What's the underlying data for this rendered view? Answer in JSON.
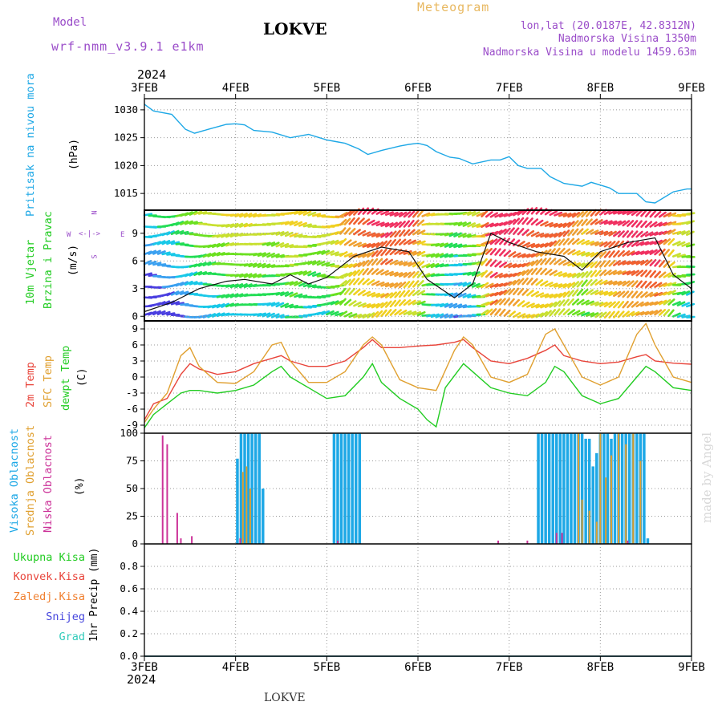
{
  "header": {
    "model_label": "Model",
    "model_name": "wrf-nmm_v3.9.1 e1km",
    "station": "LOKVE",
    "meteogram_label": "Meteogram",
    "lonlat": "lon,lat (20.0187E, 42.8312N)",
    "elevation": "Nadmorska Visina 1350m",
    "model_elevation": "Nadmorska Visina u modelu 1459.63m",
    "year_top": "2024",
    "year_bottom": "2024",
    "footer_station": "LOKVE",
    "watermark": "made by Angel"
  },
  "x_axis": {
    "dates": [
      "3FEB",
      "4FEB",
      "5FEB",
      "6FEB",
      "7FEB",
      "8FEB",
      "9FEB"
    ]
  },
  "colors": {
    "pressure": "#1ea8e6",
    "temp2m": "#e8443a",
    "sfc_temp": "#e0a030",
    "dewpt": "#22cc22",
    "cloud_high": "#1ea8e6",
    "cloud_mid": "#e0a030",
    "cloud_low": "#cc3399"
  },
  "panels": {
    "pressure": {
      "title": "Pritisak na nivou mora",
      "unit": "(hPa)"
    },
    "wind": {
      "title1": "10m Vjetar",
      "title2": "Brzina i Pravac",
      "unit": "(m/s)",
      "compass_n": "N",
      "compass_s": "S",
      "compass_w": "W",
      "compass_e": "E"
    },
    "temp": {
      "title1": "2m Temp",
      "title2": "SFC Temp",
      "title3": "dewpt Temp",
      "unit": "(C)"
    },
    "cloud": {
      "title1": "Visoka Oblacnost",
      "title2": "Srednja Oblacnost",
      "title3": "Niska Oblacnost",
      "unit": "(%)"
    },
    "precip": {
      "l1": "Ukupna Kisa",
      "l2": "Konvek.Kisa",
      "l3": "Zaledj.Kisa",
      "l4": "Snijeg",
      "l5": "Grad",
      "unit": "1hr Precip (mm)"
    }
  },
  "chart_data": [
    {
      "type": "line",
      "title": "Pritisak na nivou mora",
      "ylabel": "(hPa)",
      "ylim": [
        1012,
        1032
      ],
      "yticks": [
        1015,
        1020,
        1025,
        1030
      ],
      "x_unit": "days since 3FEB 00 UTC",
      "series": [
        {
          "name": "Pritisak na nivou mora",
          "x": [
            0,
            0.1,
            0.3,
            0.45,
            0.55,
            0.7,
            0.9,
            1.0,
            1.1,
            1.2,
            1.4,
            1.6,
            1.8,
            2.0,
            2.1,
            2.2,
            2.35,
            2.45,
            2.6,
            2.8,
            2.9,
            3.0,
            3.1,
            3.2,
            3.35,
            3.45,
            3.6,
            3.8,
            3.9,
            4.0,
            4.1,
            4.2,
            4.35,
            4.45,
            4.6,
            4.8,
            4.9,
            5.0,
            5.1,
            5.2,
            5.4,
            5.5,
            5.6,
            5.8,
            5.95,
            6.0
          ],
          "values": [
            1031,
            1029.8,
            1029.2,
            1026.5,
            1025.8,
            1026.5,
            1027.4,
            1027.5,
            1027.3,
            1026.3,
            1026.0,
            1025.0,
            1025.6,
            1024.6,
            1024.3,
            1024.0,
            1023.0,
            1022.0,
            1022.7,
            1023.5,
            1023.8,
            1024.0,
            1023.6,
            1022.5,
            1021.5,
            1021.3,
            1020.3,
            1021.0,
            1021.0,
            1021.6,
            1020.0,
            1019.5,
            1019.5,
            1018.0,
            1016.8,
            1016.3,
            1017.0,
            1016.5,
            1016.0,
            1015.0,
            1015.0,
            1013.5,
            1013.3,
            1015.3,
            1015.8,
            1015.8
          ]
        }
      ]
    },
    {
      "type": "line",
      "title": "10m Vjetar Brzina i Pravac",
      "ylabel": "(m/s)",
      "ylim": [
        -0.5,
        11.5
      ],
      "yticks": [
        0,
        3,
        6,
        9
      ],
      "series": [
        {
          "name": "10m Vjetar Brzina i Pravac",
          "x": [
            0,
            0.3,
            0.6,
            0.9,
            1.1,
            1.4,
            1.6,
            1.8,
            2.0,
            2.3,
            2.6,
            2.9,
            3.1,
            3.4,
            3.6,
            3.8,
            4.0,
            4.3,
            4.6,
            4.8,
            5.0,
            5.3,
            5.6,
            5.8,
            6.0
          ],
          "values": [
            0.5,
            1.5,
            3.0,
            3.8,
            4.0,
            3.5,
            4.5,
            3.5,
            4.2,
            6.5,
            7.5,
            7.0,
            4.0,
            2.0,
            3.5,
            9.0,
            8.0,
            7.0,
            6.5,
            5.0,
            7.0,
            8.0,
            8.5,
            4.5,
            3.0
          ]
        }
      ]
    },
    {
      "type": "line",
      "title": "2m Temp / SFC Temp / dewpt Temp",
      "ylabel": "(C)",
      "ylim": [
        -10.5,
        10.5
      ],
      "yticks": [
        -9,
        -6,
        -3,
        0,
        3,
        6,
        9
      ],
      "series": [
        {
          "name": "2m Temp",
          "x": [
            0,
            0.1,
            0.25,
            0.4,
            0.5,
            0.6,
            0.8,
            1.0,
            1.2,
            1.4,
            1.5,
            1.6,
            1.8,
            2.0,
            2.2,
            2.4,
            2.5,
            2.6,
            2.8,
            3.0,
            3.2,
            3.4,
            3.5,
            3.6,
            3.8,
            4.0,
            4.2,
            4.4,
            4.5,
            4.6,
            4.8,
            5.0,
            5.2,
            5.4,
            5.5,
            5.6,
            5.8,
            6.0
          ],
          "values": [
            -8,
            -5,
            -4,
            0.5,
            2.5,
            1.5,
            0.5,
            1,
            2.5,
            3.5,
            4,
            3,
            2,
            2,
            3,
            5.5,
            7,
            5.5,
            5.5,
            5.8,
            6,
            6.5,
            7,
            5.5,
            3,
            2.5,
            3.5,
            5,
            6,
            4,
            3,
            2.5,
            2.8,
            3.8,
            4.2,
            3,
            2.6,
            2.4
          ]
        },
        {
          "name": "SFC Temp",
          "x": [
            0,
            0.1,
            0.25,
            0.4,
            0.5,
            0.6,
            0.8,
            1.0,
            1.2,
            1.4,
            1.5,
            1.6,
            1.8,
            2.0,
            2.2,
            2.4,
            2.5,
            2.6,
            2.8,
            3.0,
            3.2,
            3.4,
            3.5,
            3.6,
            3.8,
            4.0,
            4.2,
            4.4,
            4.5,
            4.6,
            4.8,
            5.0,
            5.2,
            5.4,
            5.5,
            5.6,
            5.8,
            6.0
          ],
          "values": [
            -8.5,
            -6,
            -3,
            4,
            5.5,
            2,
            -1,
            -1.2,
            1,
            6,
            6.5,
            3,
            -1,
            -1,
            1,
            6,
            7.5,
            6,
            -0.5,
            -2,
            -2.5,
            5,
            7.5,
            6,
            0,
            -1,
            0.5,
            8,
            9,
            6,
            0,
            -1.5,
            0,
            8,
            10,
            6,
            0,
            -1
          ]
        },
        {
          "name": "dewpt Temp",
          "x": [
            0,
            0.1,
            0.25,
            0.4,
            0.5,
            0.6,
            0.8,
            1.0,
            1.2,
            1.4,
            1.5,
            1.6,
            1.8,
            2.0,
            2.2,
            2.4,
            2.5,
            2.6,
            2.8,
            3.0,
            3.1,
            3.2,
            3.3,
            3.5,
            3.6,
            3.8,
            4.0,
            4.2,
            4.4,
            4.5,
            4.6,
            4.8,
            5.0,
            5.2,
            5.4,
            5.5,
            5.6,
            5.8,
            6.0
          ],
          "values": [
            -9.5,
            -7,
            -5,
            -3,
            -2.5,
            -2.5,
            -3,
            -2.5,
            -1.5,
            1,
            2,
            0,
            -2,
            -4,
            -3.5,
            0,
            2.5,
            -1,
            -4,
            -6,
            -8,
            -9.3,
            -2,
            2.5,
            1,
            -2,
            -3,
            -3.5,
            -1,
            2,
            1,
            -3.5,
            -5,
            -4,
            0,
            2,
            1,
            -2,
            -2.5
          ]
        }
      ]
    },
    {
      "type": "bar",
      "title": "Visoka / Srednja / Niska Oblacnost",
      "ylabel": "(%)",
      "ylim": [
        0,
        100
      ],
      "yticks": [
        0,
        25,
        50,
        75,
        100
      ],
      "series": [
        {
          "name": "Visoka Oblacnost",
          "x": [
            1.02,
            1.06,
            1.1,
            1.14,
            1.18,
            1.22,
            1.26,
            1.3,
            2.08,
            2.12,
            2.16,
            2.2,
            2.24,
            2.28,
            2.32,
            2.36,
            4.32,
            4.36,
            4.4,
            4.44,
            4.48,
            4.52,
            4.56,
            4.6,
            4.64,
            4.68,
            4.72,
            4.76,
            4.8,
            4.84,
            4.88,
            4.92,
            4.96,
            5.0,
            5.04,
            5.08,
            5.12,
            5.16,
            5.2,
            5.24,
            5.28,
            5.32,
            5.36,
            5.4,
            5.44,
            5.48,
            5.52
          ],
          "values": [
            77,
            100,
            100,
            100,
            100,
            100,
            100,
            50,
            100,
            100,
            100,
            100,
            100,
            100,
            100,
            100,
            100,
            100,
            100,
            100,
            100,
            100,
            100,
            100,
            100,
            100,
            100,
            100,
            100,
            95,
            95,
            70,
            82,
            100,
            100,
            100,
            95,
            100,
            100,
            100,
            100,
            100,
            100,
            100,
            100,
            100,
            5
          ]
        },
        {
          "name": "Srednja Oblacnost",
          "x": [
            1.08,
            1.12,
            1.16,
            4.76,
            4.8,
            4.88,
            4.96,
            5.0,
            5.06,
            5.12,
            5.2,
            5.28,
            5.36,
            5.44
          ],
          "values": [
            65,
            70,
            50,
            100,
            40,
            30,
            20,
            100,
            60,
            80,
            100,
            90,
            100,
            75
          ]
        },
        {
          "name": "Niska Oblacnost",
          "x": [
            0.2,
            0.25,
            0.36,
            0.4,
            0.52,
            1.05,
            2.12,
            3.88,
            4.2,
            4.52,
            4.58,
            5.3
          ],
          "values": [
            98,
            90,
            28,
            5,
            7,
            5,
            3,
            3,
            3,
            10,
            10,
            3
          ]
        }
      ]
    },
    {
      "type": "line",
      "title": "1hr Precip (mm)",
      "ylabel": "1hr Precip (mm)",
      "ylim": [
        0,
        1
      ],
      "yticks": [
        0,
        0.2,
        0.4,
        0.6,
        0.8
      ],
      "series": [
        {
          "name": "Ukupna Kisa",
          "x": [
            0,
            6
          ],
          "values": [
            0,
            0
          ]
        },
        {
          "name": "Konvek.Kisa",
          "x": [
            0,
            6
          ],
          "values": [
            0,
            0
          ]
        },
        {
          "name": "Zaledj.Kisa",
          "x": [
            0,
            6
          ],
          "values": [
            0,
            0
          ]
        },
        {
          "name": "Snijeg",
          "x": [
            0,
            6
          ],
          "values": [
            0,
            0
          ]
        },
        {
          "name": "Grad",
          "x": [
            0,
            6
          ],
          "values": [
            0,
            0
          ]
        }
      ]
    }
  ]
}
